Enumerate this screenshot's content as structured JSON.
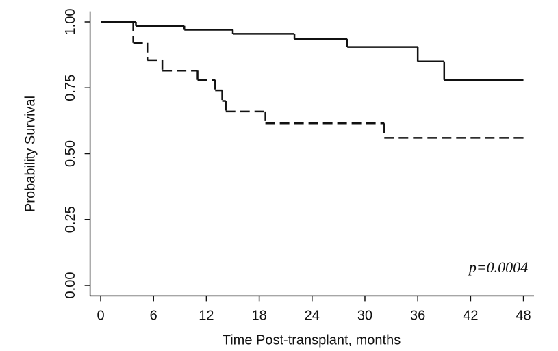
{
  "chart_data": {
    "type": "step",
    "y_label": "Probability Survival",
    "x_label": "Time Post-transplant, months",
    "annotation": "p=0.0004",
    "xlim": [
      -1.2,
      49.2
    ],
    "ylim": [
      -0.04,
      1.04
    ],
    "xticks": [
      0,
      6,
      12,
      18,
      24,
      30,
      36,
      42,
      48
    ],
    "yticks": [
      {
        "value": 0,
        "label": "0.00"
      },
      {
        "value": 0.25,
        "label": "0.25"
      },
      {
        "value": 0.5,
        "label": "0.50"
      },
      {
        "value": 0.75,
        "label": "0.75"
      },
      {
        "value": 1,
        "label": "1.00"
      }
    ],
    "series": [
      {
        "color": "#111111",
        "dash": "solid",
        "x": [
          0,
          4,
          9.5,
          15,
          22,
          28,
          36,
          39,
          48
        ],
        "values": [
          1,
          0.985,
          0.97,
          0.955,
          0.935,
          0.905,
          0.85,
          0.78,
          0.78
        ]
      },
      {
        "color": "#111111",
        "dash": "dashed",
        "x": [
          0,
          3.7,
          5.3,
          7,
          11,
          13,
          13.8,
          14.2,
          18.7,
          32.2,
          48
        ],
        "values": [
          1,
          0.92,
          0.855,
          0.815,
          0.78,
          0.74,
          0.7,
          0.66,
          0.615,
          0.56,
          0.56
        ]
      }
    ]
  }
}
